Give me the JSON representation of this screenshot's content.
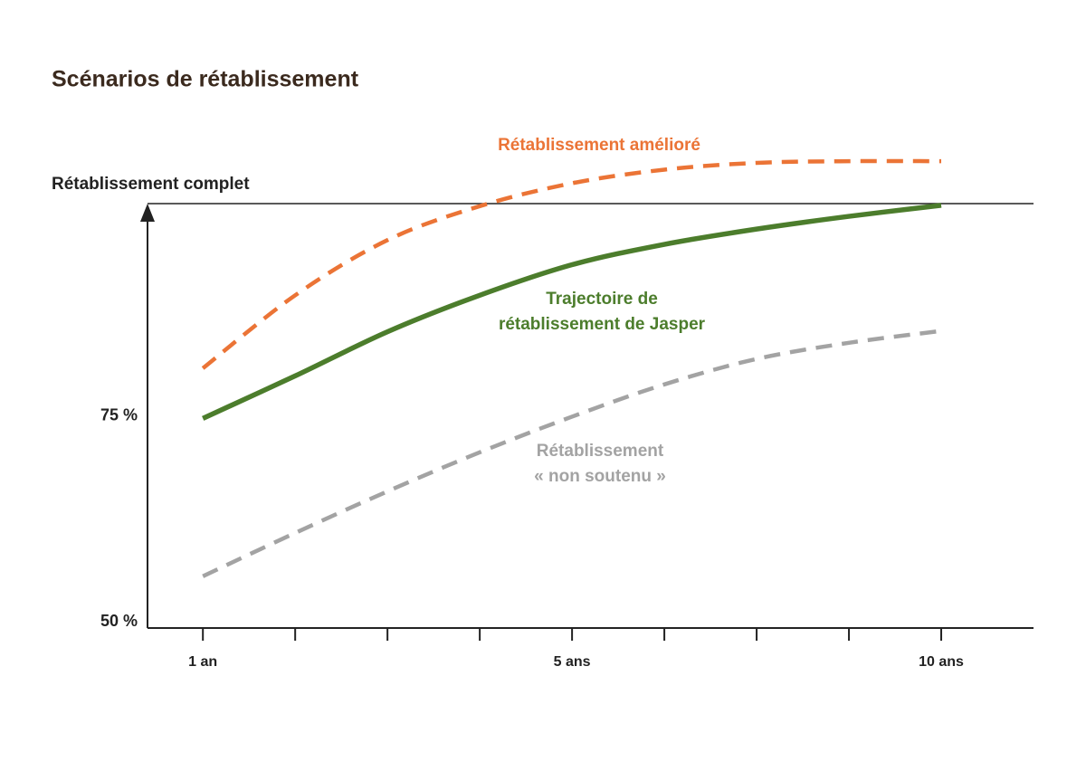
{
  "chart_data": {
    "type": "line",
    "title": "Scénarios de rétablissement",
    "categories": [
      "1 an",
      null,
      null,
      null,
      "5 ans",
      null,
      null,
      null,
      "10 ans"
    ],
    "xlim": [
      -0.6,
      9
    ],
    "ylim": [
      50,
      100
    ],
    "yticks": [
      {
        "value": 50,
        "label": "50 %"
      },
      {
        "value": 75,
        "label": "75 %"
      },
      {
        "value": 100,
        "label": "Rétablissement complet"
      }
    ],
    "series": [
      {
        "name": [
          "Rétablissement amélioré"
        ],
        "color": "#eb7436",
        "dashed": true,
        "values": [
          80.6,
          89.2,
          95.7,
          99.7,
          102.4,
          104.0,
          104.8,
          105,
          105
        ]
      },
      {
        "name": [
          "Trajectoire de",
          "rétablissement de Jasper"
        ],
        "color": "#4c7d2c",
        "dashed": false,
        "values": [
          74.7,
          79.7,
          84.9,
          89.2,
          92.8,
          95.2,
          97.0,
          98.5,
          99.8
        ]
      },
      {
        "name": [
          "Rétablissement",
          "« non soutenu »"
        ],
        "color": "#a3a3a3",
        "dashed": true,
        "values": [
          56.1,
          61.2,
          66.1,
          70.7,
          74.9,
          78.7,
          81.7,
          83.6,
          85.0
        ]
      }
    ]
  }
}
